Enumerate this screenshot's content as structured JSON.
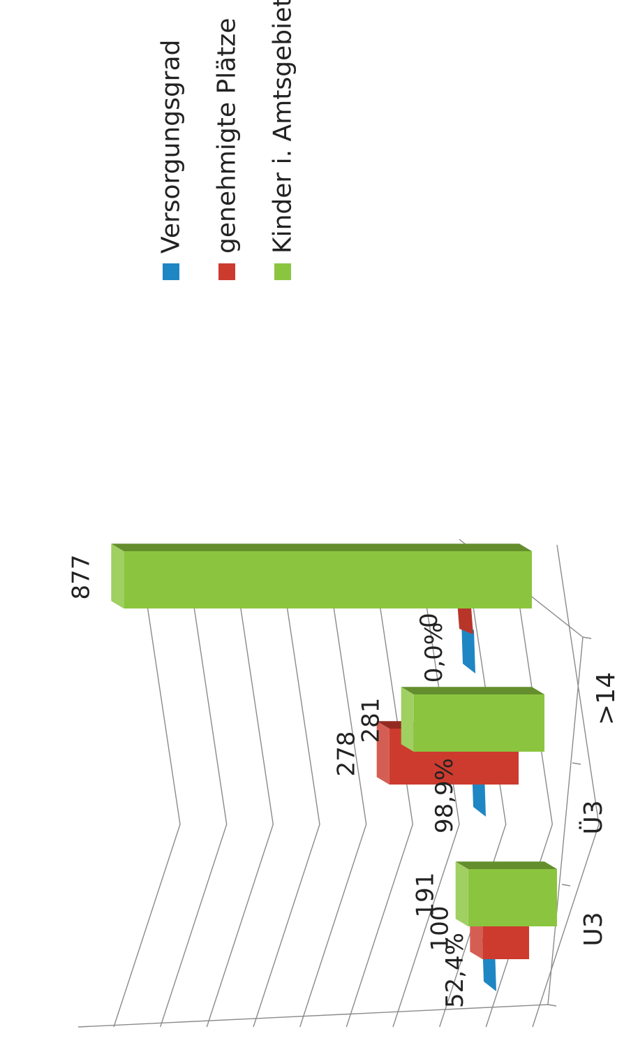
{
  "chart_data": {
    "type": "bar",
    "title": "",
    "categories": [
      "U3",
      "Ü3",
      ">14"
    ],
    "series": [
      {
        "name": "Versorgungsgrad",
        "values": [
          52.4,
          98.9,
          0.0
        ],
        "labels": [
          "52,4%",
          "98,9%",
          "0,0%"
        ],
        "color": "#1f86c4"
      },
      {
        "name": "genehmigte Plätze",
        "values": [
          100,
          278,
          0
        ],
        "labels": [
          "100",
          "278",
          "0"
        ],
        "color": "#cc3b2e"
      },
      {
        "name": "Kinder i. Amtsgebiet",
        "values": [
          191,
          281,
          877
        ],
        "labels": [
          "191",
          "281",
          "877"
        ],
        "color": "#8bc53f"
      }
    ],
    "ylim": [
      0,
      900
    ],
    "grid": true,
    "legend_position": "right",
    "orientation": "rotated-90-clockwise"
  }
}
